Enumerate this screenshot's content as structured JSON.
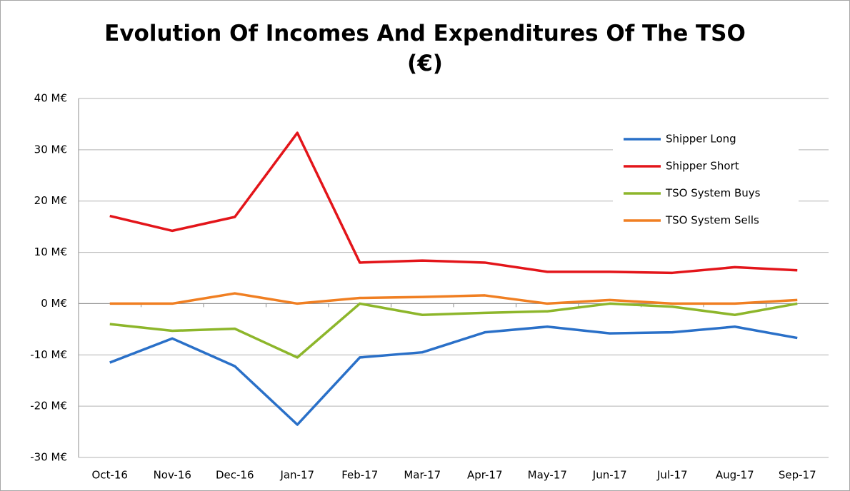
{
  "chart_data": {
    "type": "line",
    "title": "Evolution Of Incomes And Expenditures Of The TSO (€)",
    "categories": [
      "Oct-16",
      "Nov-16",
      "Dec-16",
      "Jan-17",
      "Feb-17",
      "Mar-17",
      "Apr-17",
      "May-17",
      "Jun-17",
      "Jul-17",
      "Aug-17",
      "Sep-17"
    ],
    "series": [
      {
        "name": "Shipper Long",
        "color": "#2a70c8",
        "values": [
          -11.5,
          -6.8,
          -12.2,
          -23.6,
          -10.5,
          -9.5,
          -5.6,
          -4.5,
          -5.8,
          -5.6,
          -4.5,
          -6.7
        ]
      },
      {
        "name": "Shipper Short",
        "color": "#e3151a",
        "values": [
          17.1,
          14.2,
          16.9,
          33.3,
          8.0,
          8.4,
          8.0,
          6.2,
          6.2,
          6.0,
          7.1,
          6.5
        ]
      },
      {
        "name": "TSO System Buys",
        "color": "#8db62b",
        "values": [
          -4.0,
          -5.3,
          -4.9,
          -10.5,
          0,
          -2.2,
          -1.8,
          -1.5,
          0,
          -0.6,
          -2.2,
          0
        ]
      },
      {
        "name": "TSO System Sells",
        "color": "#f07f22",
        "values": [
          0,
          0,
          2.0,
          0,
          1.1,
          1.3,
          1.6,
          0,
          0.7,
          0,
          0,
          0.7
        ]
      }
    ],
    "ylim": [
      -30,
      40
    ],
    "yticks": [
      {
        "value": -30,
        "label": "-30 M€"
      },
      {
        "value": -20,
        "label": "-20 M€"
      },
      {
        "value": -10,
        "label": "-10 M€"
      },
      {
        "value": 0,
        "label": "0 M€"
      },
      {
        "value": 10,
        "label": "10 M€"
      },
      {
        "value": 20,
        "label": "20 M€"
      },
      {
        "value": 30,
        "label": "30 M€"
      },
      {
        "value": 40,
        "label": "40 M€"
      }
    ],
    "grid": true,
    "legend": "upper right"
  }
}
